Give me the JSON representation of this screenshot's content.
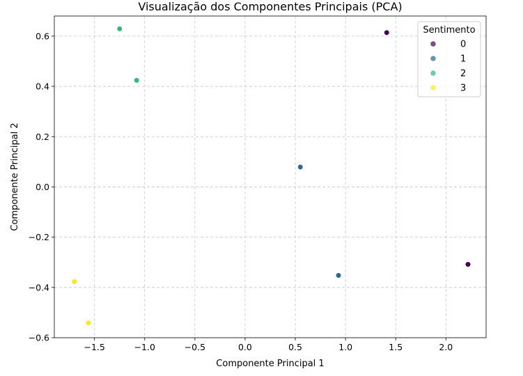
{
  "chart_data": {
    "type": "scatter",
    "title": "Visualização dos Componentes Principais (PCA)",
    "xlabel": "Componente Principal 1",
    "ylabel": "Componente Principal 2",
    "xlim": [
      -1.9,
      2.4
    ],
    "ylim": [
      -0.6,
      0.68
    ],
    "xticks": [
      -1.5,
      -1.0,
      -0.5,
      0.0,
      0.5,
      1.0,
      1.5,
      2.0
    ],
    "xtick_labels": [
      "−1.5",
      "−1.0",
      "−0.5",
      "0.0",
      "0.5",
      "1.0",
      "1.5",
      "2.0"
    ],
    "yticks": [
      -0.6,
      -0.4,
      -0.2,
      0.0,
      0.2,
      0.4,
      0.6
    ],
    "ytick_labels": [
      "−0.6",
      "−0.4",
      "−0.2",
      "0.0",
      "0.2",
      "0.4",
      "0.6"
    ],
    "grid": true,
    "legend": {
      "title": "Sentimento",
      "placement": "upper-right",
      "entries": [
        {
          "label": "0",
          "color": "#440154"
        },
        {
          "label": "1",
          "color": "#31688e"
        },
        {
          "label": "2",
          "color": "#35b779"
        },
        {
          "label": "3",
          "color": "#fde725"
        }
      ]
    },
    "points": [
      {
        "x": 1.41,
        "y": 0.614,
        "class": "0",
        "color": "#440154"
      },
      {
        "x": 2.22,
        "y": -0.308,
        "class": "0",
        "color": "#440154"
      },
      {
        "x": 0.55,
        "y": 0.079,
        "class": "1",
        "color": "#31688e"
      },
      {
        "x": 0.93,
        "y": -0.352,
        "class": "1",
        "color": "#31688e"
      },
      {
        "x": -1.25,
        "y": 0.629,
        "class": "2",
        "color": "#35b779"
      },
      {
        "x": -1.08,
        "y": 0.424,
        "class": "2",
        "color": "#35b779"
      },
      {
        "x": -1.7,
        "y": -0.377,
        "class": "3",
        "color": "#fde725"
      },
      {
        "x": -1.56,
        "y": -0.541,
        "class": "3",
        "color": "#fde725"
      }
    ]
  }
}
